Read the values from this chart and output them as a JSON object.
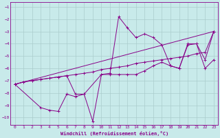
{
  "background_color": "#c8eaea",
  "grid_color": "#aacccc",
  "line_color": "#880088",
  "xlabel": "Windchill (Refroidissement éolien,°C)",
  "xlim": [
    -0.5,
    23.5
  ],
  "ylim": [
    -10.6,
    -0.6
  ],
  "yticks": [
    -10,
    -9,
    -8,
    -7,
    -6,
    -5,
    -4,
    -3,
    -2,
    -1
  ],
  "xticks": [
    0,
    1,
    2,
    3,
    4,
    5,
    6,
    7,
    8,
    9,
    10,
    11,
    12,
    13,
    14,
    15,
    16,
    17,
    18,
    19,
    20,
    21,
    22,
    23
  ],
  "series1_x": [
    0,
    1,
    2,
    3,
    4,
    5,
    6,
    7,
    8,
    9,
    10,
    11,
    12,
    13,
    14,
    15,
    16,
    17,
    18,
    19,
    20,
    21,
    22,
    23
  ],
  "series1_y": [
    -7.3,
    -7.1,
    -7.0,
    -6.9,
    -6.8,
    -6.7,
    -6.6,
    -6.5,
    -6.4,
    -6.3,
    -6.1,
    -6.0,
    -5.9,
    -5.8,
    -5.6,
    -5.5,
    -5.4,
    -5.3,
    -5.2,
    -5.1,
    -5.0,
    -4.8,
    -4.7,
    -3.0
  ],
  "series2_x": [
    0,
    1,
    2,
    3,
    4,
    5,
    6,
    7,
    8,
    9,
    10,
    11,
    12,
    13,
    14,
    15,
    16,
    17,
    18,
    19,
    20,
    21,
    22,
    23
  ],
  "series2_y": [
    -7.3,
    -7.1,
    -7.0,
    -6.9,
    -6.8,
    -6.7,
    -6.6,
    -8.1,
    -8.1,
    -10.3,
    -6.5,
    -6.4,
    -1.8,
    -2.7,
    -3.5,
    -3.2,
    -3.5,
    -4.1,
    -5.8,
    -6.0,
    -4.1,
    -4.0,
    -6.0,
    -5.3
  ],
  "series3_x": [
    0,
    3,
    4,
    5,
    6,
    7,
    8,
    10,
    11,
    12,
    13,
    14,
    15,
    16,
    17,
    18,
    19,
    20,
    21,
    22,
    23
  ],
  "series3_y": [
    -7.3,
    -9.2,
    -9.4,
    -9.5,
    -8.1,
    -8.3,
    -8.1,
    -6.5,
    -6.5,
    -6.5,
    -6.5,
    -6.5,
    -6.2,
    -5.8,
    -5.5,
    -5.8,
    -6.0,
    -4.0,
    -4.0,
    -5.3,
    -3.0
  ],
  "series4_x": [
    0,
    23
  ],
  "series4_y": [
    -7.3,
    -3.0
  ]
}
